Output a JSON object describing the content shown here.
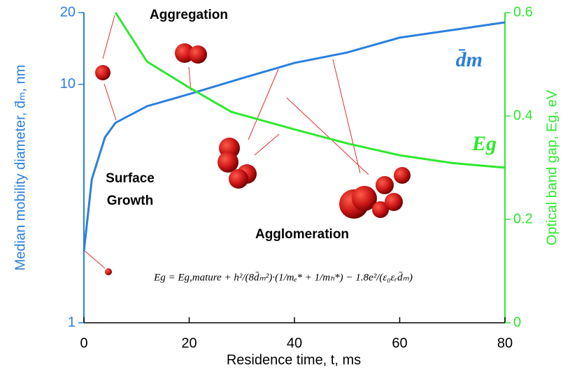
{
  "chart_data": {
    "type": "line",
    "x_label": "Residence time, t, ms",
    "y_label": "Median mobility diameter, d̄ₘ, nm",
    "y2_label": "Optical band gap, Eg, eV",
    "annotations": [
      "Aggregation",
      "Surface",
      "Growth",
      "Agglomeration"
    ],
    "equation": "Eg = Eg,mature + h²/(8d̄ₘ²)·(1/mₑ* + 1/mₕ*) − 1.8e²/(ε₀εᵣd̄ₘ)",
    "xlim": [
      0,
      80
    ],
    "xticks": [
      0,
      20,
      40,
      60,
      80
    ],
    "ylim": [
      1,
      20
    ],
    "yticks": [
      1,
      10,
      20
    ],
    "ylog": true,
    "y2lim": [
      0,
      0.6
    ],
    "y2ticks": [
      0,
      0.2,
      0.4,
      0.6
    ],
    "series": [
      {
        "name": "d̄m",
        "color": "#2b7fde",
        "x": [
          0,
          1.5,
          4,
          6,
          12,
          20,
          30,
          40,
          50,
          60,
          70,
          80
        ],
        "values": [
          2.0,
          4.0,
          6.0,
          6.9,
          8.1,
          9.1,
          10.6,
          12.3,
          13.6,
          15.7,
          16.9,
          18.2
        ]
      },
      {
        "name": "Eg",
        "color": "#2ee82e",
        "axis": "y2",
        "x": [
          6,
          12,
          20,
          28,
          40,
          50,
          60,
          70,
          80
        ],
        "values": [
          0.6,
          0.505,
          0.455,
          0.408,
          0.374,
          0.347,
          0.324,
          0.309,
          0.3
        ]
      }
    ]
  }
}
